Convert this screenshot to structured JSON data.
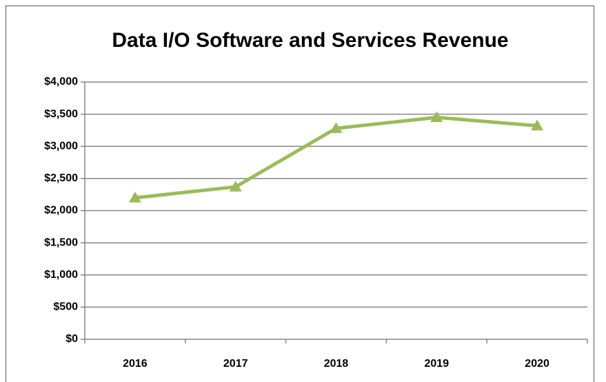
{
  "chart_data": {
    "type": "line",
    "title": "Data I/O Software and Services Revenue",
    "categories": [
      "2016",
      "2017",
      "2018",
      "2019",
      "2020"
    ],
    "series": [
      {
        "name": "Revenue",
        "color": "#9bbb59",
        "values": [
          2200,
          2370,
          3280,
          3450,
          3320
        ]
      }
    ],
    "ylim": [
      0,
      4000
    ],
    "yticks": [
      {
        "value": 0,
        "label": "$0"
      },
      {
        "value": 500,
        "label": "$500"
      },
      {
        "value": 1000,
        "label": "$1,000"
      },
      {
        "value": 1500,
        "label": "$1,500"
      },
      {
        "value": 2000,
        "label": "$2,000"
      },
      {
        "value": 2500,
        "label": "$2,500"
      },
      {
        "value": 3000,
        "label": "$3,000"
      },
      {
        "value": 3500,
        "label": "$3,500"
      },
      {
        "value": 4000,
        "label": "$4,000"
      }
    ],
    "grid": true
  }
}
